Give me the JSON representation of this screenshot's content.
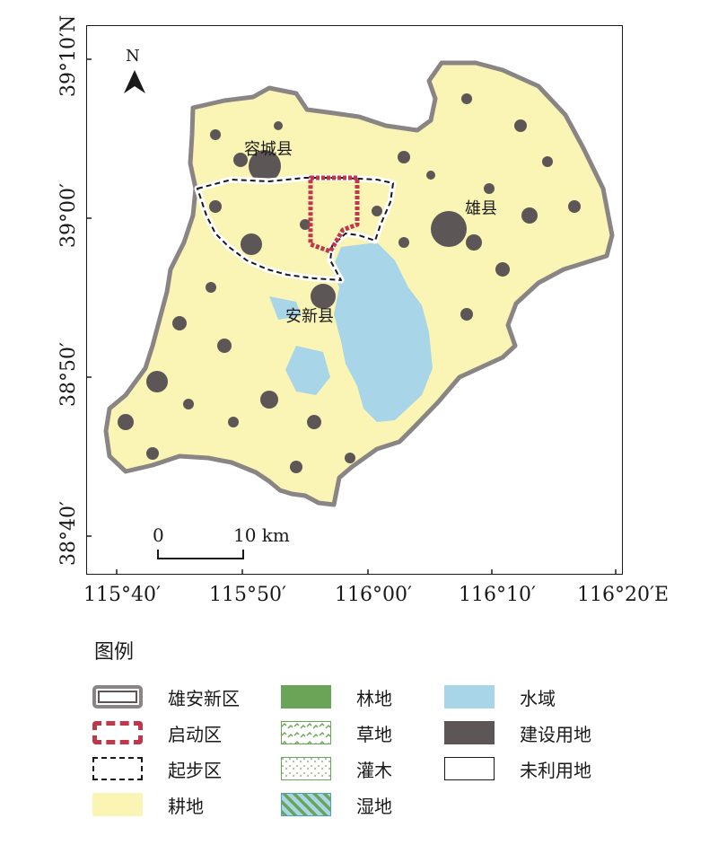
{
  "north_arrow": {
    "label": "N"
  },
  "places": {
    "rongcheng": "容城县",
    "xiongxian": "雄县",
    "anxin": "安新县"
  },
  "lat_labels": [
    "39°10′N",
    "39°00′",
    "38°50′",
    "38°40′"
  ],
  "lon_labels": [
    "115°40′",
    "115°50′",
    "116°00′",
    "116°10′",
    "116°20′E"
  ],
  "scale_bar": {
    "start": "0",
    "end": "10 km"
  },
  "legend": {
    "title": "图例",
    "items": [
      {
        "label": "雄安新区",
        "style": "xiongan-boundary",
        "color": "#8a8585"
      },
      {
        "label": "启动区",
        "style": "startup-boundary",
        "color": "#c0364a"
      },
      {
        "label": "起步区",
        "style": "initial-boundary",
        "color": "#1a1a1a"
      },
      {
        "label": "耕地",
        "style": "fill",
        "color": "#faf5b4"
      },
      {
        "label": "林地",
        "style": "fill",
        "color": "#6aa557"
      },
      {
        "label": "草地",
        "style": "grass-pattern",
        "color": "#6aa557"
      },
      {
        "label": "灌木",
        "style": "shrub-pattern",
        "color": "#6aa557"
      },
      {
        "label": "湿地",
        "style": "wetland-pattern",
        "color": "#4aa0c8"
      },
      {
        "label": "水域",
        "style": "fill",
        "color": "#a8d6e8"
      },
      {
        "label": "建设用地",
        "style": "fill",
        "color": "#5c5656"
      },
      {
        "label": "未利用地",
        "style": "outline",
        "color": "#ffffff"
      }
    ]
  }
}
